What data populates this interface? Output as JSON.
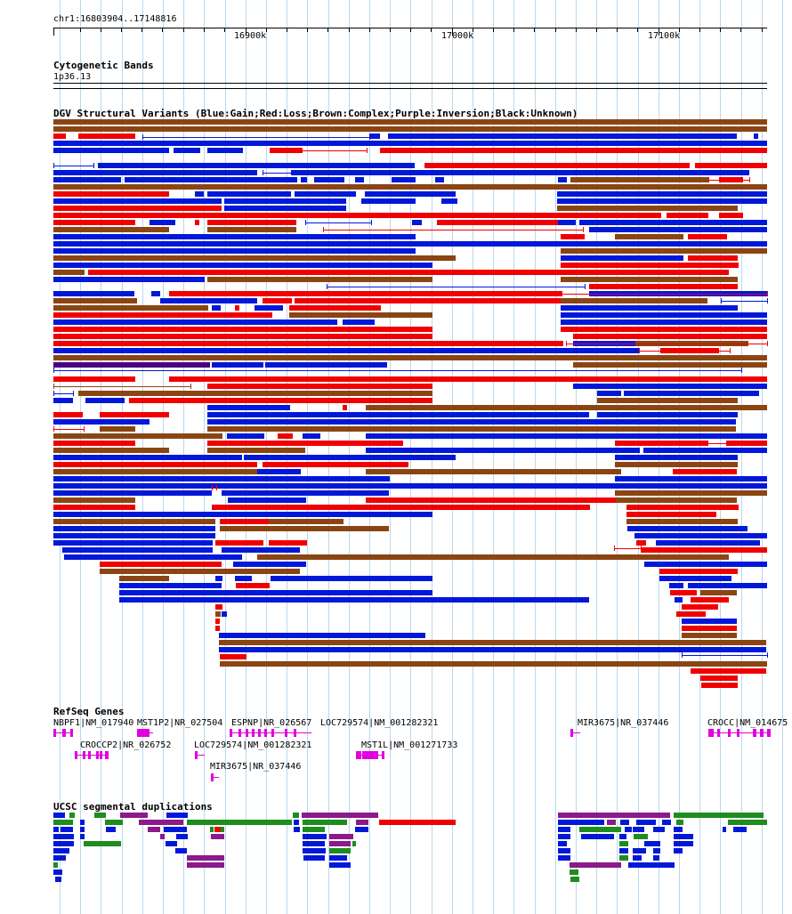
{
  "browser": {
    "position": "chr1:16803904..17148816",
    "ruler_ticks": [
      "16900k",
      "17000k",
      "17100k"
    ]
  },
  "tracks": {
    "cytoband": {
      "title": "Cytogenetic Bands",
      "band": "1p36.13"
    },
    "dgv": {
      "title": "DGV Structural Variants (Blue:Gain;Red:Loss;Brown:Complex;Purple:Inversion;Black:Unknown)"
    },
    "refseq": {
      "title": "RefSeq Genes",
      "genes": [
        {
          "label": "NBPF1|NM_017940"
        },
        {
          "label": "MST1P2|NR_027504"
        },
        {
          "label": "ESPNP|NR_026567"
        },
        {
          "label": "LOC729574|NM_001282321"
        },
        {
          "label": "MIR3675|NR_037446"
        },
        {
          "label": "CROCC|NM_014675"
        },
        {
          "label": "CROCCP2|NR_026752"
        },
        {
          "label": "LOC729574|NM_001282321"
        },
        {
          "label": "MST1L|NM_001271733"
        },
        {
          "label": "MIR3675|NR_037446"
        }
      ]
    },
    "segdup": {
      "title": "UCSC segmental duplications"
    }
  },
  "colors": {
    "gain": "#0018d8",
    "loss": "#f00000",
    "complex": "#8b4513",
    "inversion": "#4b0082",
    "gene": "#e000e0",
    "segdup_green": "#1e8c1e",
    "segdup_purple": "#8b1a8b",
    "gridline": "#b8d8ee"
  }
}
